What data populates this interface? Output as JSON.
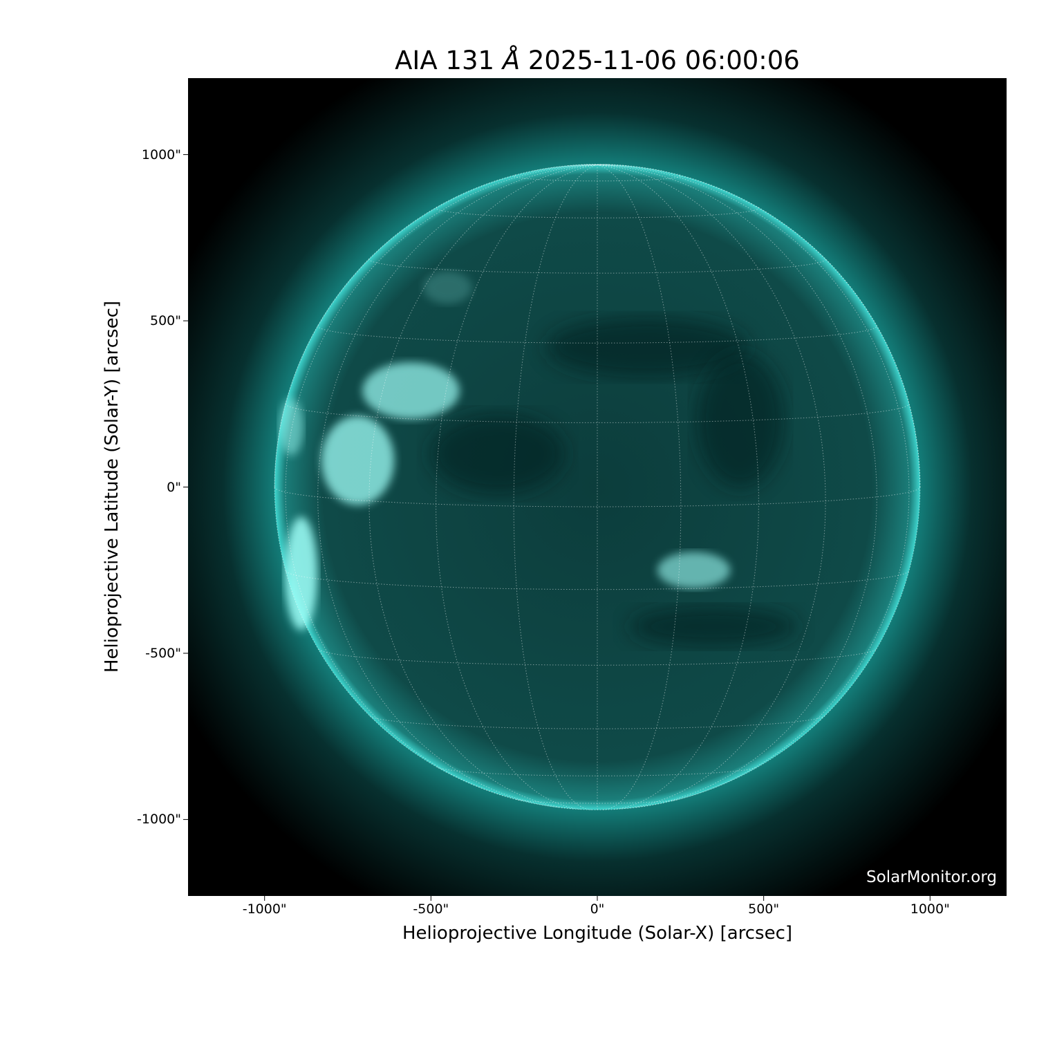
{
  "title": {
    "prefix": "AIA 131 ",
    "unit": "Å",
    "suffix": " 2025-11-06 06:00:06"
  },
  "xlabel": "Helioprojective Longitude (Solar-X) [arcsec]",
  "ylabel": "Helioprojective Latitude (Solar-Y) [arcsec]",
  "x_ticks": [
    "-1000\"",
    "-500\"",
    "0\"",
    "500\"",
    "1000\""
  ],
  "y_ticks": [
    "1000\"",
    "500\"",
    "0\"",
    "-500\"",
    "-1000\""
  ],
  "x_tick_values": [
    -1000,
    -500,
    0,
    500,
    1000
  ],
  "y_tick_values": [
    1000,
    500,
    0,
    -500,
    -1000
  ],
  "xlim": [
    -1230,
    1230
  ],
  "ylim": [
    -1230,
    1230
  ],
  "solar_radius_arcsec": 970,
  "grid_spacing_deg": 15,
  "watermark": "SolarMonitor.org",
  "colors": {
    "disk": "#0f4a48",
    "bright": "#9ffff8",
    "corona": "#1fa6a0",
    "background": "#000000"
  }
}
